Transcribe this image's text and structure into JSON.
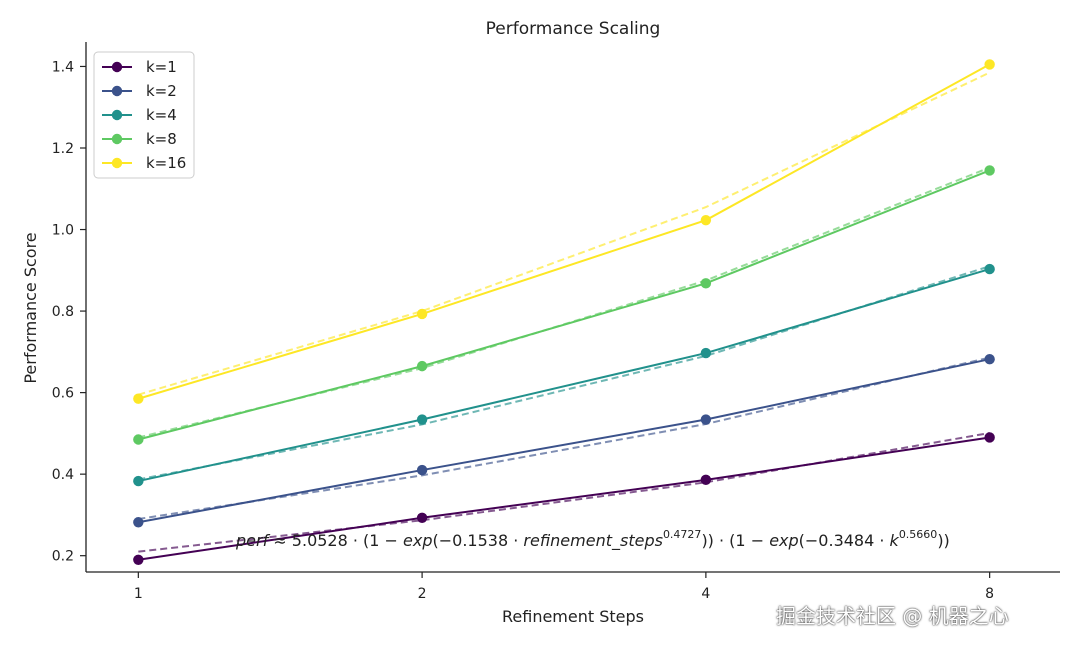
{
  "chart_data": {
    "type": "line",
    "title": "Performance Scaling",
    "xlabel": "Refinement Steps",
    "ylabel": "Performance Score",
    "x": [
      1,
      2,
      4,
      8
    ],
    "xscale": "log2",
    "xlim": [
      0.88,
      9.5
    ],
    "ylim": [
      0.16,
      1.46
    ],
    "xticks": [
      1,
      2,
      4,
      8
    ],
    "xtick_labels": [
      "1",
      "2",
      "4",
      "8"
    ],
    "yticks": [
      0.2,
      0.4,
      0.6,
      0.8,
      1.0,
      1.2,
      1.4
    ],
    "ytick_labels": [
      "0.2",
      "0.4",
      "0.6",
      "0.8",
      "1.0",
      "1.2",
      "1.4"
    ],
    "grid": false,
    "legend_position": "top-left",
    "series": [
      {
        "name": "k=1",
        "color": "#440154",
        "values": [
          0.19,
          0.293,
          0.386,
          0.49
        ],
        "fit": [
          0.21,
          0.287,
          0.38,
          0.501
        ]
      },
      {
        "name": "k=2",
        "color": "#3b528b",
        "values": [
          0.282,
          0.41,
          0.534,
          0.682
        ],
        "fit": [
          0.29,
          0.397,
          0.523,
          0.686
        ]
      },
      {
        "name": "k=4",
        "color": "#21918c",
        "values": [
          0.383,
          0.534,
          0.697,
          0.903
        ],
        "fit": [
          0.387,
          0.522,
          0.69,
          0.91
        ]
      },
      {
        "name": "k=8",
        "color": "#5ec962",
        "values": [
          0.485,
          0.665,
          0.868,
          1.145
        ],
        "fit": [
          0.49,
          0.66,
          0.875,
          1.152
        ]
      },
      {
        "name": "k=16",
        "color": "#fde725",
        "values": [
          0.585,
          0.793,
          1.023,
          1.405
        ],
        "fit": [
          0.595,
          0.8,
          1.055,
          1.385
        ]
      }
    ],
    "annotation": {
      "lhs": "perf",
      "approx": " ≈ ",
      "coef": "5.0528",
      "part1_open": " · (1 − ",
      "exp1": "exp",
      "part1_mid": "(−0.1538 · ",
      "var1": "refinement_steps",
      "pow1": "0.4727",
      "part1_close": ")) · (1 − ",
      "exp2": "exp",
      "part2_mid": "(−0.3484 · ",
      "var2": "k",
      "pow2": "0.5660",
      "part2_close": "))"
    }
  },
  "watermark": "掘金技术社区 @ 机器之心"
}
